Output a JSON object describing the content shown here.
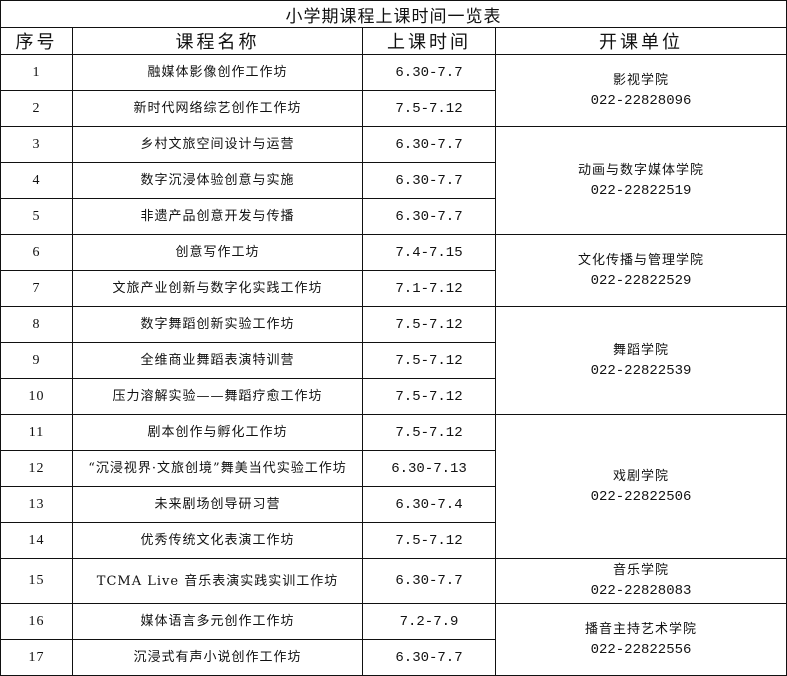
{
  "title": "小学期课程上课时间一览表",
  "headers": [
    "序号",
    "课程名称",
    "上课时间",
    "开课单位"
  ],
  "rows": [
    {
      "no": "1",
      "name": "融媒体影像创作工作坊",
      "time": "6.30-7.7"
    },
    {
      "no": "2",
      "name": "新时代网络综艺创作工作坊",
      "time": "7.5-7.12"
    },
    {
      "no": "3",
      "name": "乡村文旅空间设计与运营",
      "time": "6.30-7.7"
    },
    {
      "no": "4",
      "name": "数字沉浸体验创意与实施",
      "time": "6.30-7.7"
    },
    {
      "no": "5",
      "name": "非遗产品创意开发与传播",
      "time": "6.30-7.7"
    },
    {
      "no": "6",
      "name": "创意写作工坊",
      "time": "7.4-7.15"
    },
    {
      "no": "7",
      "name": "文旅产业创新与数字化实践工作坊",
      "time": "7.1-7.12"
    },
    {
      "no": "8",
      "name": "数字舞蹈创新实验工作坊",
      "time": "7.5-7.12"
    },
    {
      "no": "9",
      "name": "全维商业舞蹈表演特训营",
      "time": "7.5-7.12"
    },
    {
      "no": "10",
      "name": "压力溶解实验——舞蹈疗愈工作坊",
      "time": "7.5-7.12"
    },
    {
      "no": "11",
      "name": "剧本创作与孵化工作坊",
      "time": "7.5-7.12"
    },
    {
      "no": "12",
      "name": "“沉浸视界·文旅创境”舞美当代实验工作坊",
      "time": "6.30-7.13"
    },
    {
      "no": "13",
      "name": "未来剧场创导研习营",
      "time": "6.30-7.4"
    },
    {
      "no": "14",
      "name": "优秀传统文化表演工作坊",
      "time": "7.5-7.12"
    },
    {
      "no": "15",
      "name": "TCMA Live 音乐表演实践实训工作坊",
      "time": "6.30-7.7"
    },
    {
      "no": "16",
      "name": "媒体语言多元创作工作坊",
      "time": "7.2-7.9"
    },
    {
      "no": "17",
      "name": "沉浸式有声小说创作工作坊",
      "time": "6.30-7.7"
    }
  ],
  "units": [
    {
      "name": "影视学院",
      "phone": "022-22828096",
      "span": 2
    },
    {
      "name": "动画与数字媒体学院",
      "phone": "022-22822519",
      "span": 3
    },
    {
      "name": "文化传播与管理学院",
      "phone": "022-22822529",
      "span": 2
    },
    {
      "name": "舞蹈学院",
      "phone": "022-22822539",
      "span": 3
    },
    {
      "name": "戏剧学院",
      "phone": "022-22822506",
      "span": 4
    },
    {
      "name": "音乐学院",
      "phone": "022-22828083",
      "span": 1
    },
    {
      "name": "播音主持艺术学院",
      "phone": "022-22822556",
      "span": 2
    }
  ]
}
